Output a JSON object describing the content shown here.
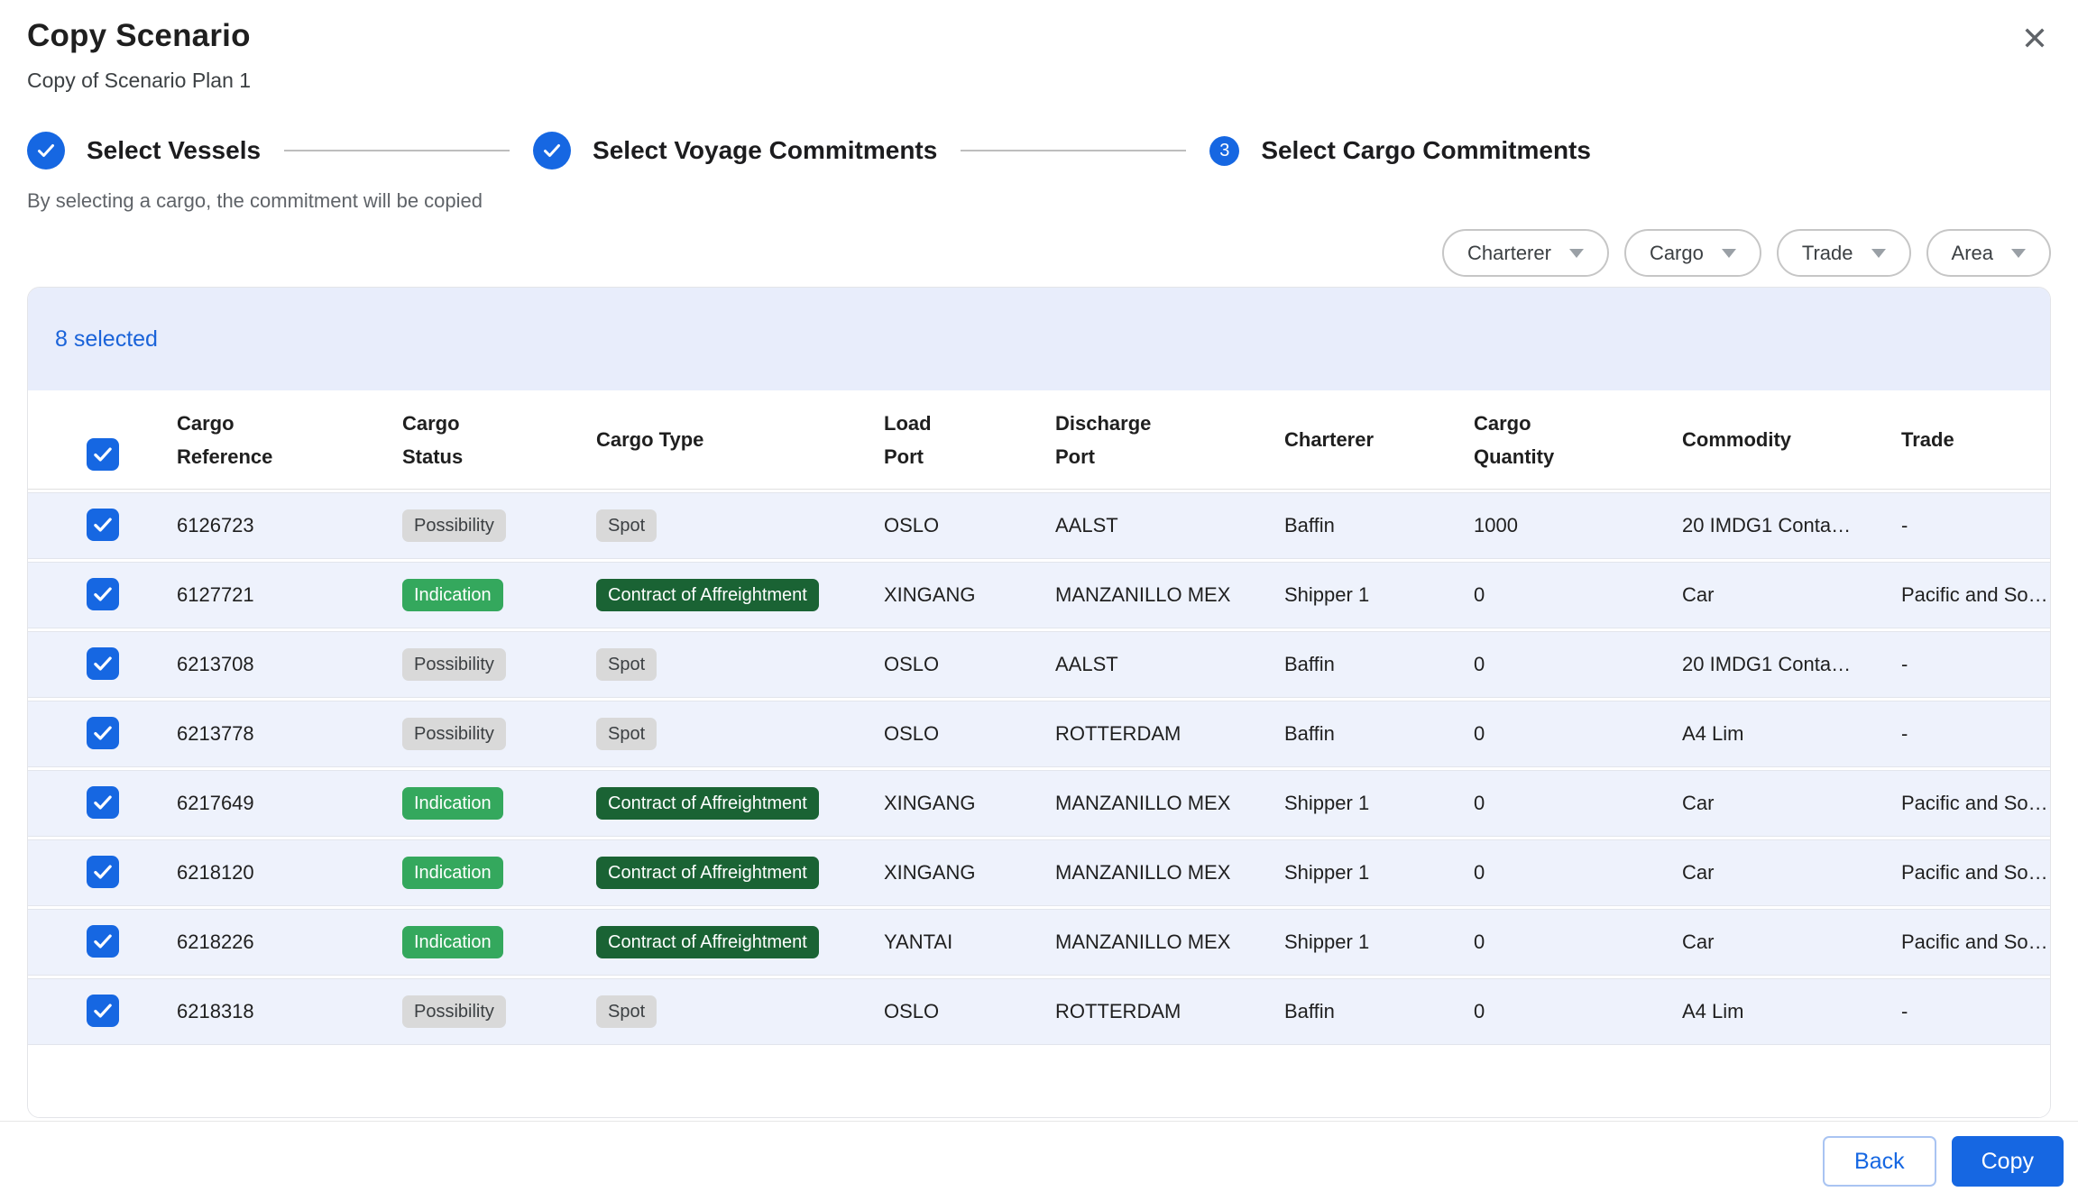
{
  "modal": {
    "title": "Copy Scenario",
    "subtitle": "Copy of Scenario Plan 1"
  },
  "stepper": {
    "steps": [
      {
        "label": "Select Vessels",
        "state": "completed"
      },
      {
        "label": "Select Voyage Commitments",
        "state": "completed"
      },
      {
        "label": "Select Cargo Commitments",
        "state": "active",
        "number": "3"
      }
    ]
  },
  "hint": "By selecting a cargo, the commitment will be copied",
  "filters": [
    {
      "label": "Charterer"
    },
    {
      "label": "Cargo"
    },
    {
      "label": "Trade"
    },
    {
      "label": "Area"
    }
  ],
  "table": {
    "selected_summary": "8 selected",
    "columns": [
      "Cargo\nReference",
      "Cargo\nStatus",
      "Cargo Type",
      "Load\nPort",
      "Discharge\nPort",
      "Charterer",
      "Cargo\nQuantity",
      "Commodity",
      "Trade"
    ],
    "header_checkbox_checked": true,
    "rows": [
      {
        "checked": true,
        "reference": "6126723",
        "status": {
          "label": "Possibility",
          "style": "neutral"
        },
        "type": {
          "label": "Spot",
          "style": "neutral"
        },
        "load_port": "OSLO",
        "discharge_port": "AALST",
        "charterer": "Baffin",
        "quantity": "1000",
        "commodity": "20 IMDG1 Conta…",
        "trade": "-"
      },
      {
        "checked": true,
        "reference": "6127721",
        "status": {
          "label": "Indication",
          "style": "green"
        },
        "type": {
          "label": "Contract of Affreightment",
          "style": "dark_green"
        },
        "load_port": "XINGANG",
        "discharge_port": "MANZANILLO MEX",
        "charterer": "Shipper 1",
        "quantity": "0",
        "commodity": "Car",
        "trade": "Pacific and So…"
      },
      {
        "checked": true,
        "reference": "6213708",
        "status": {
          "label": "Possibility",
          "style": "neutral"
        },
        "type": {
          "label": "Spot",
          "style": "neutral"
        },
        "load_port": "OSLO",
        "discharge_port": "AALST",
        "charterer": "Baffin",
        "quantity": "0",
        "commodity": "20 IMDG1 Conta…",
        "trade": "-"
      },
      {
        "checked": true,
        "reference": "6213778",
        "status": {
          "label": "Possibility",
          "style": "neutral"
        },
        "type": {
          "label": "Spot",
          "style": "neutral"
        },
        "load_port": "OSLO",
        "discharge_port": "ROTTERDAM",
        "charterer": "Baffin",
        "quantity": "0",
        "commodity": "A4 Lim",
        "trade": "-"
      },
      {
        "checked": true,
        "reference": "6217649",
        "status": {
          "label": "Indication",
          "style": "green"
        },
        "type": {
          "label": "Contract of Affreightment",
          "style": "dark_green"
        },
        "load_port": "XINGANG",
        "discharge_port": "MANZANILLO MEX",
        "charterer": "Shipper 1",
        "quantity": "0",
        "commodity": "Car",
        "trade": "Pacific and So…"
      },
      {
        "checked": true,
        "reference": "6218120",
        "status": {
          "label": "Indication",
          "style": "green"
        },
        "type": {
          "label": "Contract of Affreightment",
          "style": "dark_green"
        },
        "load_port": "XINGANG",
        "discharge_port": "MANZANILLO MEX",
        "charterer": "Shipper 1",
        "quantity": "0",
        "commodity": "Car",
        "trade": "Pacific and So…"
      },
      {
        "checked": true,
        "reference": "6218226",
        "status": {
          "label": "Indication",
          "style": "green"
        },
        "type": {
          "label": "Contract of Affreightment",
          "style": "dark_green"
        },
        "load_port": "YANTAI",
        "discharge_port": "MANZANILLO MEX",
        "charterer": "Shipper 1",
        "quantity": "0",
        "commodity": "Car",
        "trade": "Pacific and So…"
      },
      {
        "checked": true,
        "reference": "6218318",
        "status": {
          "label": "Possibility",
          "style": "neutral"
        },
        "type": {
          "label": "Spot",
          "style": "neutral"
        },
        "load_port": "OSLO",
        "discharge_port": "ROTTERDAM",
        "charterer": "Baffin",
        "quantity": "0",
        "commodity": "A4 Lim",
        "trade": "-"
      }
    ]
  },
  "footer": {
    "back_label": "Back",
    "copy_label": "Copy"
  },
  "icons": {
    "close": "close-icon",
    "step_check": "check-icon",
    "filter_caret": "chevron-down-icon",
    "row_check": "checkbox-check-icon"
  },
  "colors": {
    "accent_blue": "#1667e2",
    "selected_text_blue": "#1a63d9",
    "selected_banner_bg": "#e8edfb",
    "row_bg": "#eef2fc",
    "badge_neutral_bg": "#d9d9d9",
    "badge_green_bg": "#34a85d",
    "badge_dark_green_bg": "#1a6334"
  }
}
